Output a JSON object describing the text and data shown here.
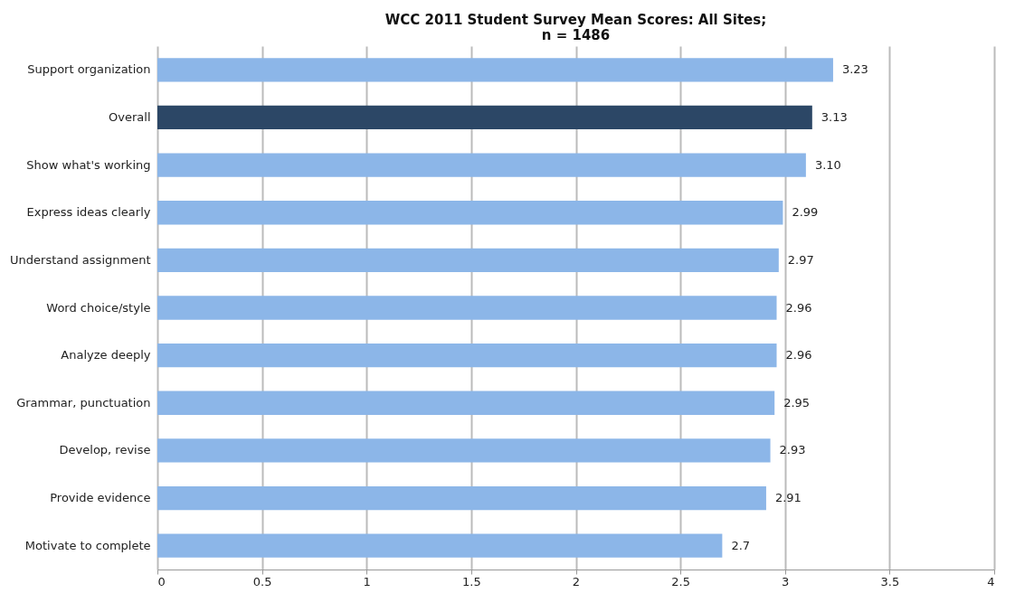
{
  "chart_data": {
    "type": "bar",
    "orientation": "horizontal",
    "title": "WCC 2011 Student Survey Mean Scores: All Sites;\nn = 1486",
    "categories": [
      "Support organization",
      "Overall",
      "Show what's working",
      "Express ideas clearly",
      "Understand assignment",
      "Word choice/style",
      "Analyze deeply",
      "Grammar, punctuation",
      "Develop, revise",
      "Provide evidence",
      "Motivate to complete"
    ],
    "values": [
      3.23,
      3.13,
      3.1,
      2.99,
      2.97,
      2.96,
      2.96,
      2.95,
      2.93,
      2.91,
      2.7
    ],
    "value_labels": [
      "3.23",
      "3.13",
      "3.10",
      "2.99",
      "2.97",
      "2.96",
      "2.96",
      "2.95",
      "2.93",
      "2.91",
      "2.7"
    ],
    "colors": [
      "#8cb6e8",
      "#2c4766",
      "#8cb6e8",
      "#8cb6e8",
      "#8cb6e8",
      "#8cb6e8",
      "#8cb6e8",
      "#8cb6e8",
      "#8cb6e8",
      "#8cb6e8",
      "#8cb6e8"
    ],
    "xlim": [
      0,
      4
    ],
    "xticks": [
      0,
      0.5,
      1,
      1.5,
      2,
      2.5,
      3,
      3.5,
      4
    ],
    "grid": "x"
  }
}
